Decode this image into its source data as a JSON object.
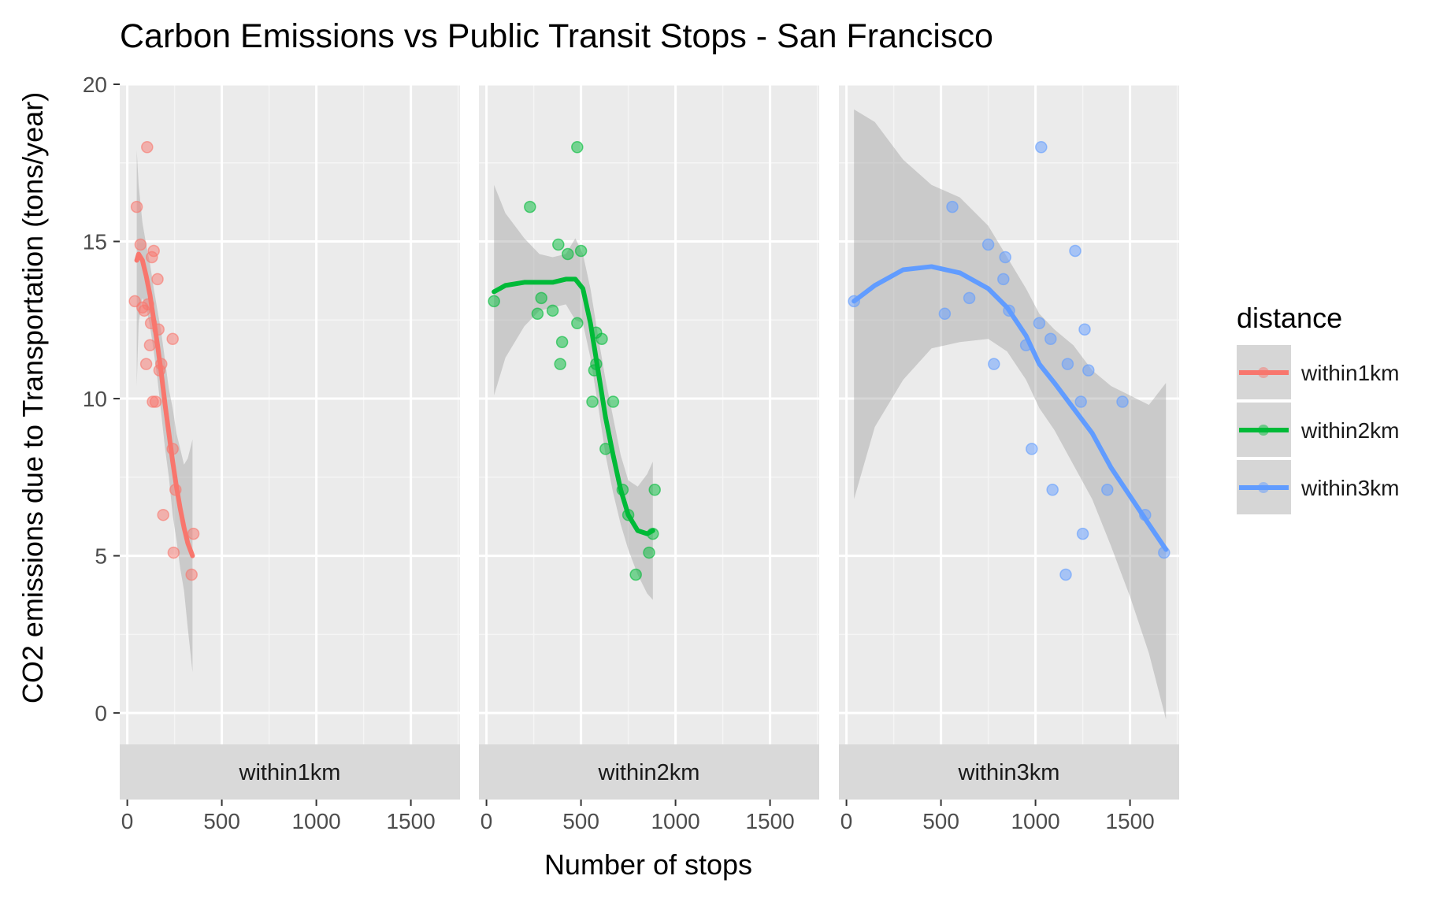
{
  "chart_data": {
    "type": "scatter",
    "title": "Carbon Emissions vs Public Transit Stops - San Francisco",
    "xlabel": "Number of stops",
    "ylabel": "CO2 emissions due to Transportation (tons/year)",
    "xlim": [
      -40,
      1760
    ],
    "ylim": [
      -1,
      20
    ],
    "x_ticks": [
      0,
      500,
      1000,
      1500
    ],
    "y_ticks": [
      0,
      5,
      10,
      15,
      20
    ],
    "x_tick_labels": [
      "0",
      "500",
      "1000",
      "1500"
    ],
    "y_tick_labels": [
      "0",
      "5",
      "10",
      "15",
      "20"
    ],
    "grid": true,
    "facet_strip_position": "bottom",
    "legend": {
      "title": "distance",
      "placement": "right",
      "entries": [
        "within1km",
        "within2km",
        "within3km"
      ]
    },
    "colors": {
      "within1km": "#F8766D",
      "within2km": "#00BA38",
      "within3km": "#619CFF",
      "panel_background": "#EBEBEB",
      "strip_background": "#D9D9D9",
      "confidence_band": "#999999"
    },
    "facets": [
      {
        "name": "within1km",
        "points": [
          [
            40,
            13.1
          ],
          [
            50,
            16.1
          ],
          [
            70,
            14.9
          ],
          [
            80,
            12.9
          ],
          [
            90,
            12.8
          ],
          [
            100,
            11.1
          ],
          [
            105,
            18.0
          ],
          [
            110,
            13.0
          ],
          [
            120,
            11.7
          ],
          [
            125,
            12.4
          ],
          [
            130,
            14.5
          ],
          [
            135,
            9.9
          ],
          [
            140,
            14.7
          ],
          [
            150,
            9.9
          ],
          [
            160,
            13.8
          ],
          [
            165,
            12.2
          ],
          [
            170,
            10.9
          ],
          [
            180,
            11.1
          ],
          [
            190,
            6.3
          ],
          [
            240,
            11.9
          ],
          [
            240,
            8.4
          ],
          [
            245,
            5.1
          ],
          [
            255,
            7.1
          ],
          [
            340,
            4.4
          ],
          [
            350,
            5.7
          ]
        ],
        "smooth": [
          [
            50,
            14.4
          ],
          [
            60,
            14.6
          ],
          [
            80,
            14.4
          ],
          [
            100,
            13.9
          ],
          [
            120,
            13.3
          ],
          [
            140,
            12.5
          ],
          [
            160,
            11.7
          ],
          [
            180,
            10.8
          ],
          [
            200,
            9.8
          ],
          [
            220,
            8.9
          ],
          [
            240,
            8.0
          ],
          [
            260,
            7.2
          ],
          [
            280,
            6.5
          ],
          [
            300,
            5.9
          ],
          [
            320,
            5.4
          ],
          [
            345,
            5.0
          ]
        ],
        "band_upper": [
          [
            50,
            17.9
          ],
          [
            60,
            16.8
          ],
          [
            80,
            15.6
          ],
          [
            100,
            14.9
          ],
          [
            120,
            14.3
          ],
          [
            140,
            13.5
          ],
          [
            160,
            12.8
          ],
          [
            180,
            12.1
          ],
          [
            200,
            11.2
          ],
          [
            220,
            10.3
          ],
          [
            240,
            9.7
          ],
          [
            260,
            8.9
          ],
          [
            280,
            8.4
          ],
          [
            300,
            7.9
          ],
          [
            320,
            8.1
          ],
          [
            345,
            8.7
          ]
        ],
        "band_lower": [
          [
            50,
            10.4
          ],
          [
            60,
            12.4
          ],
          [
            80,
            13.2
          ],
          [
            100,
            12.9
          ],
          [
            120,
            12.3
          ],
          [
            140,
            11.5
          ],
          [
            160,
            10.6
          ],
          [
            180,
            9.5
          ],
          [
            200,
            8.4
          ],
          [
            220,
            7.5
          ],
          [
            240,
            6.3
          ],
          [
            260,
            5.5
          ],
          [
            280,
            4.6
          ],
          [
            300,
            3.9
          ],
          [
            320,
            2.7
          ],
          [
            345,
            1.3
          ]
        ]
      },
      {
        "name": "within2km",
        "points": [
          [
            40,
            13.1
          ],
          [
            230,
            16.1
          ],
          [
            270,
            12.7
          ],
          [
            290,
            13.2
          ],
          [
            350,
            12.8
          ],
          [
            380,
            14.9
          ],
          [
            390,
            11.1
          ],
          [
            400,
            11.8
          ],
          [
            430,
            14.6
          ],
          [
            480,
            18.0
          ],
          [
            480,
            12.4
          ],
          [
            500,
            14.7
          ],
          [
            560,
            9.9
          ],
          [
            570,
            10.9
          ],
          [
            580,
            11.1
          ],
          [
            580,
            12.1
          ],
          [
            610,
            11.9
          ],
          [
            630,
            8.4
          ],
          [
            670,
            9.9
          ],
          [
            720,
            7.1
          ],
          [
            750,
            6.3
          ],
          [
            790,
            4.4
          ],
          [
            860,
            5.1
          ],
          [
            880,
            5.7
          ],
          [
            890,
            7.1
          ]
        ],
        "smooth": [
          [
            40,
            13.4
          ],
          [
            100,
            13.6
          ],
          [
            200,
            13.7
          ],
          [
            280,
            13.7
          ],
          [
            350,
            13.7
          ],
          [
            420,
            13.8
          ],
          [
            470,
            13.8
          ],
          [
            510,
            13.5
          ],
          [
            550,
            12.4
          ],
          [
            590,
            10.9
          ],
          [
            630,
            9.4
          ],
          [
            670,
            8.2
          ],
          [
            710,
            7.1
          ],
          [
            750,
            6.3
          ],
          [
            800,
            5.8
          ],
          [
            850,
            5.7
          ],
          [
            880,
            5.8
          ]
        ],
        "band_upper": [
          [
            40,
            16.8
          ],
          [
            100,
            15.9
          ],
          [
            200,
            15.1
          ],
          [
            280,
            14.6
          ],
          [
            350,
            14.5
          ],
          [
            420,
            14.6
          ],
          [
            470,
            15.1
          ],
          [
            510,
            14.6
          ],
          [
            550,
            13.5
          ],
          [
            590,
            12.0
          ],
          [
            630,
            10.6
          ],
          [
            670,
            9.4
          ],
          [
            710,
            8.2
          ],
          [
            750,
            7.4
          ],
          [
            800,
            7.2
          ],
          [
            850,
            7.6
          ],
          [
            880,
            8.0
          ]
        ],
        "band_lower": [
          [
            40,
            10.1
          ],
          [
            100,
            11.3
          ],
          [
            200,
            12.3
          ],
          [
            280,
            12.8
          ],
          [
            350,
            12.9
          ],
          [
            420,
            13.0
          ],
          [
            470,
            12.5
          ],
          [
            510,
            12.4
          ],
          [
            550,
            11.3
          ],
          [
            590,
            9.8
          ],
          [
            630,
            8.2
          ],
          [
            670,
            7.0
          ],
          [
            710,
            6.0
          ],
          [
            750,
            5.2
          ],
          [
            800,
            4.4
          ],
          [
            850,
            3.8
          ],
          [
            880,
            3.6
          ]
        ]
      },
      {
        "name": "within3km",
        "points": [
          [
            40,
            13.1
          ],
          [
            520,
            12.7
          ],
          [
            560,
            16.1
          ],
          [
            650,
            13.2
          ],
          [
            750,
            14.9
          ],
          [
            780,
            11.1
          ],
          [
            830,
            13.8
          ],
          [
            840,
            14.5
          ],
          [
            860,
            12.8
          ],
          [
            950,
            11.7
          ],
          [
            980,
            8.4
          ],
          [
            1020,
            12.4
          ],
          [
            1030,
            18.0
          ],
          [
            1080,
            11.9
          ],
          [
            1090,
            7.1
          ],
          [
            1160,
            4.4
          ],
          [
            1170,
            11.1
          ],
          [
            1210,
            14.7
          ],
          [
            1240,
            9.9
          ],
          [
            1250,
            5.7
          ],
          [
            1260,
            12.2
          ],
          [
            1280,
            10.9
          ],
          [
            1380,
            7.1
          ],
          [
            1460,
            9.9
          ],
          [
            1580,
            6.3
          ],
          [
            1680,
            5.1
          ]
        ],
        "smooth": [
          [
            40,
            13.1
          ],
          [
            150,
            13.6
          ],
          [
            300,
            14.1
          ],
          [
            450,
            14.2
          ],
          [
            600,
            14.0
          ],
          [
            750,
            13.5
          ],
          [
            850,
            12.9
          ],
          [
            950,
            12.0
          ],
          [
            1020,
            11.1
          ],
          [
            1100,
            10.5
          ],
          [
            1200,
            9.7
          ],
          [
            1300,
            8.9
          ],
          [
            1400,
            7.8
          ],
          [
            1500,
            6.9
          ],
          [
            1600,
            6.0
          ],
          [
            1690,
            5.2
          ]
        ],
        "band_upper": [
          [
            40,
            19.2
          ],
          [
            150,
            18.8
          ],
          [
            300,
            17.6
          ],
          [
            450,
            16.8
          ],
          [
            600,
            16.4
          ],
          [
            750,
            15.5
          ],
          [
            850,
            14.5
          ],
          [
            950,
            13.5
          ],
          [
            1020,
            12.7
          ],
          [
            1100,
            12.2
          ],
          [
            1200,
            11.7
          ],
          [
            1300,
            10.9
          ],
          [
            1400,
            10.4
          ],
          [
            1500,
            10.1
          ],
          [
            1600,
            9.8
          ],
          [
            1690,
            10.5
          ]
        ],
        "band_lower": [
          [
            40,
            6.8
          ],
          [
            150,
            9.1
          ],
          [
            300,
            10.6
          ],
          [
            450,
            11.6
          ],
          [
            600,
            11.8
          ],
          [
            750,
            11.9
          ],
          [
            850,
            11.5
          ],
          [
            950,
            10.6
          ],
          [
            1020,
            9.7
          ],
          [
            1100,
            9.0
          ],
          [
            1200,
            7.9
          ],
          [
            1300,
            6.8
          ],
          [
            1400,
            5.3
          ],
          [
            1500,
            3.7
          ],
          [
            1600,
            1.9
          ],
          [
            1690,
            -0.2
          ]
        ]
      }
    ]
  }
}
